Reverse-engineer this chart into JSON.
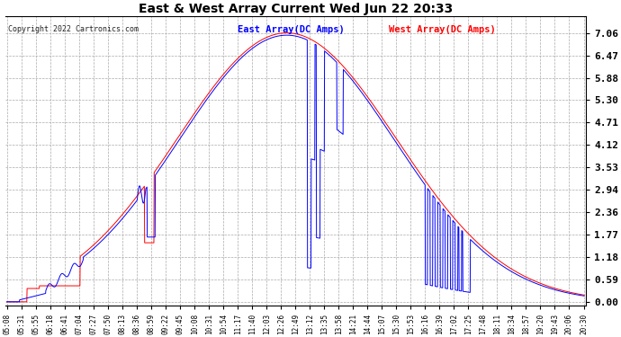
{
  "title": "East & West Array Current Wed Jun 22 20:33",
  "legend_east": "East Array(DC Amps)",
  "legend_west": "West Array(DC Amps)",
  "copyright": "Copyright 2022 Cartronics.com",
  "east_color": "#0000ff",
  "west_color": "#ff0000",
  "background_color": "#ffffff",
  "grid_color": "#aaaaaa",
  "yticks": [
    0.0,
    0.59,
    1.18,
    1.77,
    2.36,
    2.94,
    3.53,
    4.12,
    4.71,
    5.3,
    5.88,
    6.47,
    7.06
  ],
  "xtick_labels": [
    "05:08",
    "05:31",
    "05:55",
    "06:18",
    "06:41",
    "07:04",
    "07:27",
    "07:50",
    "08:13",
    "08:36",
    "08:59",
    "09:22",
    "09:45",
    "10:08",
    "10:31",
    "10:54",
    "11:17",
    "11:40",
    "12:03",
    "12:26",
    "12:49",
    "13:12",
    "13:35",
    "13:58",
    "14:21",
    "14:44",
    "15:07",
    "15:30",
    "15:53",
    "16:16",
    "16:39",
    "17:02",
    "17:25",
    "17:48",
    "18:11",
    "18:34",
    "18:57",
    "19:20",
    "19:43",
    "20:06",
    "20:30"
  ],
  "ymax": 7.06
}
